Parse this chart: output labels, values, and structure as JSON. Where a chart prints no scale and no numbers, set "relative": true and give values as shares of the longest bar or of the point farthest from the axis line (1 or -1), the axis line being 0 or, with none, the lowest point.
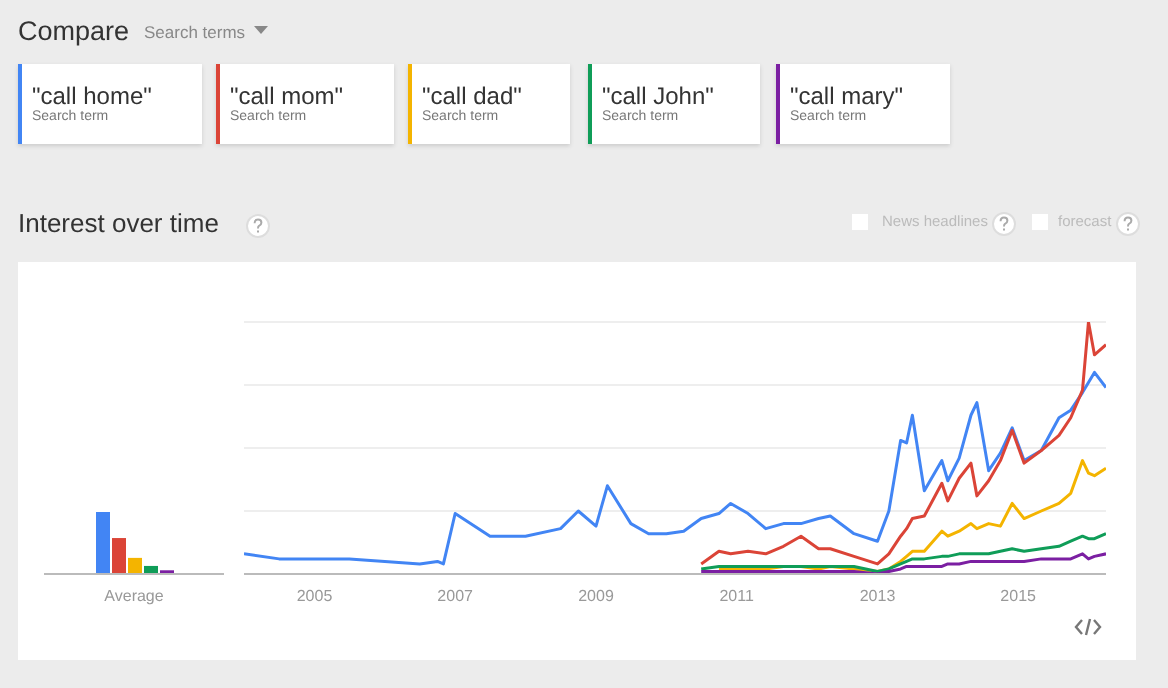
{
  "chart_data": [
    {
      "type": "bar",
      "relative": true,
      "categories": [
        "Average"
      ],
      "series": [
        {
          "color": "#4285f4",
          "values": [
            1
          ]
        },
        {
          "color": "#db4437",
          "values": [
            0.58
          ]
        },
        {
          "color": "#f4b400",
          "values": [
            0.26
          ]
        },
        {
          "color": "#0f9d58",
          "values": [
            0.13
          ]
        },
        {
          "color": "#7b1fa2",
          "values": [
            0.06
          ]
        }
      ]
    },
    {
      "type": "line",
      "title": "Interest over time",
      "relative": true,
      "legend": "top",
      "grid": "y",
      "annotations": [
        "Compare",
        "Search terms",
        "News headlines",
        "forecast",
        "Search term",
        "Search term",
        "Search term",
        "Search term",
        "Search term"
      ],
      "xlim": [
        "2004-01",
        "2016-04"
      ],
      "xticks": [
        "2005",
        "2007",
        "2009",
        "2011",
        "2013",
        "2015"
      ],
      "x": [
        "2004-01",
        "2004-07",
        "2005-01",
        "2005-07",
        "2006-01",
        "2006-07",
        "2006-10",
        "2006-11",
        "2007-01",
        "2007-07",
        "2008-01",
        "2008-07",
        "2008-10",
        "2009-01",
        "2009-03",
        "2009-07",
        "2009-10",
        "2010-01",
        "2010-04",
        "2010-07",
        "2010-10",
        "2010-12",
        "2011-03",
        "2011-06",
        "2011-09",
        "2011-12",
        "2012-03",
        "2012-05",
        "2012-09",
        "2013-01",
        "2013-03",
        "2013-05",
        "2013-06",
        "2013-07",
        "2013-09",
        "2013-12",
        "2014-01",
        "2014-03",
        "2014-05",
        "2014-06",
        "2014-08",
        "2014-10",
        "2014-12",
        "2015-02",
        "2015-05",
        "2015-08",
        "2015-10",
        "2015-12",
        "2016-01",
        "2016-02",
        "2016-04"
      ],
      "series": [
        {
          "name": "\"call home\"",
          "color": "#4285f4",
          "values": [
            0.08,
            0.06,
            0.06,
            0.06,
            0.05,
            0.04,
            0.05,
            0.04,
            0.24,
            0.15,
            0.15,
            0.18,
            0.25,
            0.19,
            0.35,
            0.2,
            0.16,
            0.16,
            0.17,
            0.22,
            0.24,
            0.28,
            0.24,
            0.18,
            0.2,
            0.2,
            0.22,
            0.23,
            0.16,
            0.13,
            0.25,
            0.53,
            0.52,
            0.63,
            0.33,
            0.45,
            0.37,
            0.46,
            0.63,
            0.68,
            0.41,
            0.48,
            0.58,
            0.45,
            0.49,
            0.62,
            0.65,
            0.72,
            0.76,
            0.8,
            0.74
          ]
        },
        {
          "name": "\"call mom\"",
          "color": "#db4437",
          "values": [
            null,
            null,
            null,
            null,
            null,
            null,
            null,
            null,
            null,
            null,
            null,
            null,
            null,
            null,
            null,
            null,
            null,
            null,
            null,
            0.04,
            0.09,
            0.08,
            0.09,
            0.08,
            0.11,
            0.15,
            0.1,
            0.1,
            0.07,
            0.04,
            0.08,
            0.15,
            0.18,
            0.22,
            0.23,
            0.36,
            0.29,
            0.38,
            0.44,
            0.31,
            0.37,
            0.45,
            0.57,
            0.44,
            0.49,
            0.55,
            0.62,
            0.73,
            1,
            0.87,
            0.91
          ]
        },
        {
          "name": "\"call dad\"",
          "color": "#f4b400",
          "values": [
            null,
            null,
            null,
            null,
            null,
            null,
            null,
            null,
            null,
            null,
            null,
            null,
            null,
            null,
            null,
            null,
            null,
            null,
            null,
            null,
            0.02,
            0.02,
            0.02,
            0.02,
            0.03,
            0.03,
            0.02,
            0.03,
            0.02,
            0.01,
            0.02,
            0.05,
            0.07,
            0.09,
            0.09,
            0.17,
            0.15,
            0.17,
            0.2,
            0.18,
            0.2,
            0.19,
            0.28,
            0.22,
            0.25,
            0.28,
            0.32,
            0.45,
            0.4,
            0.39,
            0.42
          ]
        },
        {
          "name": "\"call John\"",
          "color": "#0f9d58",
          "values": [
            null,
            null,
            null,
            null,
            null,
            null,
            null,
            null,
            null,
            null,
            null,
            null,
            null,
            null,
            null,
            null,
            null,
            null,
            null,
            0.02,
            0.03,
            0.03,
            0.03,
            0.03,
            0.03,
            0.03,
            0.03,
            0.03,
            0.03,
            0.01,
            0.02,
            0.04,
            0.05,
            0.06,
            0.06,
            0.07,
            0.07,
            0.08,
            0.08,
            0.08,
            0.08,
            0.09,
            0.1,
            0.09,
            0.1,
            0.11,
            0.13,
            0.15,
            0.14,
            0.14,
            0.16
          ]
        },
        {
          "name": "\"call mary\"",
          "color": "#7b1fa2",
          "values": [
            null,
            null,
            null,
            null,
            null,
            null,
            null,
            null,
            null,
            null,
            null,
            null,
            null,
            null,
            null,
            null,
            null,
            null,
            null,
            0.01,
            0.01,
            0.01,
            0.01,
            0.01,
            0.01,
            0.01,
            0.01,
            0.01,
            0.01,
            0,
            0.01,
            0.02,
            0.03,
            0.03,
            0.03,
            0.03,
            0.04,
            0.04,
            0.05,
            0.05,
            0.05,
            0.05,
            0.05,
            0.05,
            0.06,
            0.06,
            0.06,
            0.08,
            0.06,
            0.07,
            0.08
          ]
        }
      ]
    }
  ]
}
